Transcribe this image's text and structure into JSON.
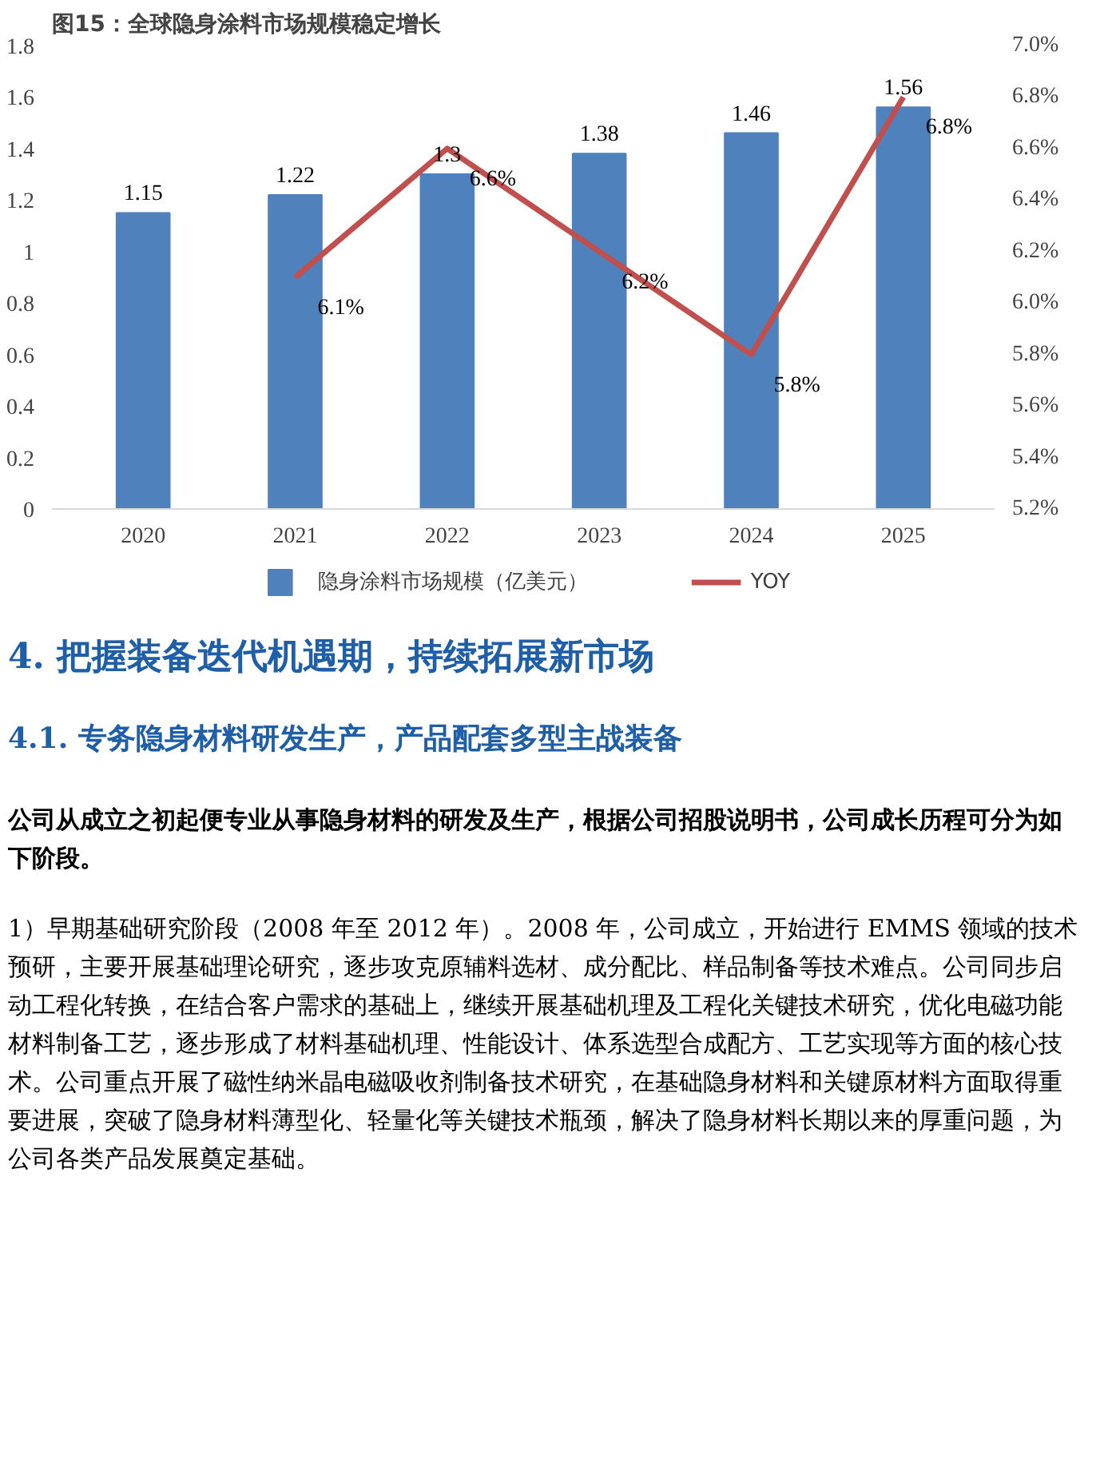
{
  "chart_data": {
    "type": "bar",
    "title": "图15：全球隐身涂料市场规模稳定增长",
    "categories": [
      "2020",
      "2021",
      "2022",
      "2023",
      "2024",
      "2025"
    ],
    "series": [
      {
        "name": "隐身涂料市场规模（亿美元）",
        "type": "bar",
        "color": "#4f81bd",
        "values": [
          1.15,
          1.22,
          1.3,
          1.38,
          1.46,
          1.56
        ],
        "data_labels": true
      },
      {
        "name": "YOY",
        "type": "line",
        "axis": "y2",
        "color": "#c0504d",
        "values": [
          null,
          6.1,
          6.6,
          6.2,
          5.8,
          6.8
        ],
        "value_labels": [
          null,
          "6.1%",
          "6.6%",
          "6.2%",
          "5.8%",
          "6.8%"
        ]
      }
    ],
    "ylim": [
      0,
      1.8
    ],
    "yticks": [
      0,
      0.2,
      0.4,
      0.6,
      0.8,
      1,
      1.2,
      1.4,
      1.6,
      1.8
    ],
    "y2lim": [
      5.2,
      7.0
    ],
    "y2ticks": [
      {
        "value": 5.2,
        "label": "5.2%"
      },
      {
        "value": 5.4,
        "label": "5.4%"
      },
      {
        "value": 5.6,
        "label": "5.6%"
      },
      {
        "value": 5.8,
        "label": "5.8%"
      },
      {
        "value": 6.0,
        "label": "6.0%"
      },
      {
        "value": 6.2,
        "label": "6.2%"
      },
      {
        "value": 6.4,
        "label": "6.4%"
      },
      {
        "value": 6.6,
        "label": "6.6%"
      },
      {
        "value": 6.8,
        "label": "6.8%"
      },
      {
        "value": 7.0,
        "label": "7.0%"
      }
    ],
    "grid": false,
    "legend": "bottom",
    "marker": "none",
    "line_style": "solid",
    "annotations": [
      "4.  把握装备迭代机遇期，持续拓展新市场",
      "4.1.  专务隐身材料研发生产，产品配套多型主战装备",
      "公司从成立之初起便专业从事隐身材料的研发及生产，根据公司招股说明书，公司成长历程可分为如下阶段。",
      "1）早期基础研究阶段（2008 年至 2012 年）。2008 年，公司成立，开始进行 EMMS 领域的技术预研，主要开展基础理论研究，逐步攻克原辅料选材、成分配比、样品制备等技术难点。公司同步启动工程化转换，在结合客户需求的基础上，继续开展基础机理及工程化关键技术研究，优化电磁功能材料制备工艺，逐步形成了材料基础机理、性能设计、体系选型合成配方、工艺实现等方面的核心技术。公司重点开展了磁性纳米晶电磁吸收剂制备技术研究，在基础隐身材料和关键原材料方面取得重要进展，突破了隐身材料薄型化、轻量化等关键技术瓶颈，解决了隐身材料长期以来的厚重问题，为公司各类产品发展奠定基础。"
    ]
  }
}
